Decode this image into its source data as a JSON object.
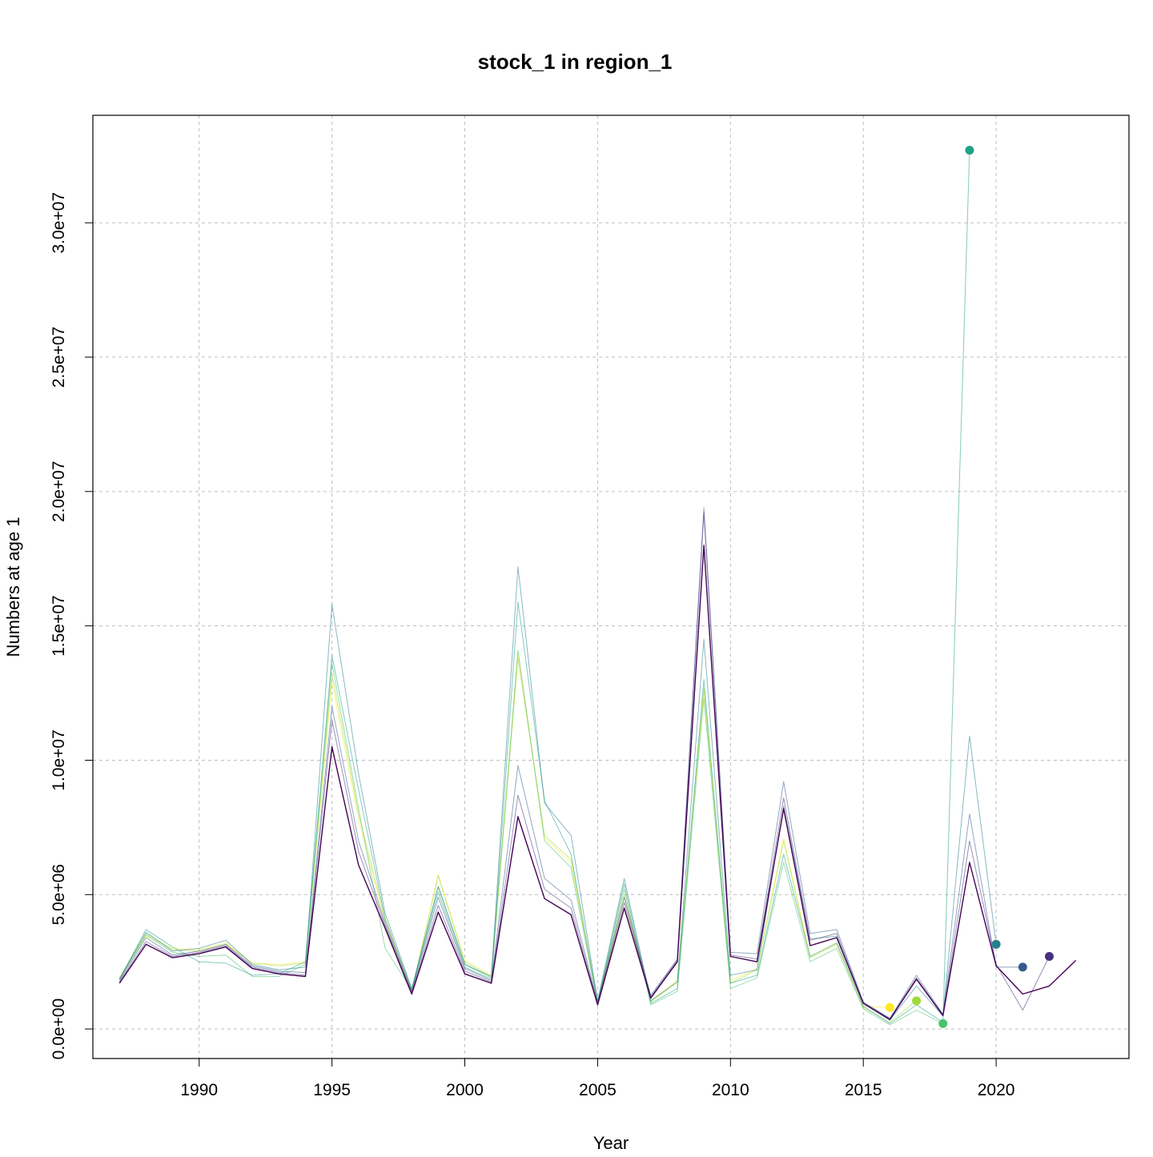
{
  "chart_data": {
    "type": "line",
    "title": "stock_1 in region_1",
    "xlabel": "Year",
    "ylabel": "Numbers at age 1",
    "xlim": [
      1986,
      2025
    ],
    "ylim": [
      -1100000,
      34000000
    ],
    "x_ticks": [
      1990,
      1995,
      2000,
      2005,
      2010,
      2015,
      2020
    ],
    "x_tick_labels": [
      "1990",
      "1995",
      "2000",
      "2005",
      "2010",
      "2015",
      "2020"
    ],
    "y_ticks": [
      0,
      5000000,
      10000000,
      15000000,
      20000000,
      25000000,
      30000000
    ],
    "y_tick_labels": [
      "0.0e+00",
      "5.0e+06",
      "1.0e+07",
      "1.5e+07",
      "2.0e+07",
      "2.5e+07",
      "3.0e+07"
    ],
    "grid": true,
    "series": [
      {
        "color": "#440154",
        "x": [
          1987,
          1988,
          1989,
          1990,
          1991,
          1992,
          1993,
          1994,
          1995,
          1996,
          1997,
          1998,
          1999,
          2000,
          2001,
          2002,
          2003,
          2004,
          2005,
          2006,
          2007,
          2008,
          2009,
          2010,
          2011,
          2012,
          2013,
          2014,
          2015,
          2016,
          2017,
          2018,
          2019,
          2020,
          2021,
          2022,
          2023
        ],
        "values": [
          1700000,
          3150000,
          2650000,
          2800000,
          3050000,
          2250000,
          2050000,
          1950000,
          10500000,
          6100000,
          3750000,
          1300000,
          4350000,
          2050000,
          1700000,
          7900000,
          4850000,
          4250000,
          900000,
          4500000,
          1150000,
          2500000,
          18000000,
          2700000,
          2500000,
          8200000,
          3100000,
          3400000,
          950000,
          350000,
          1850000,
          500000,
          6200000,
          2350000,
          1300000,
          1600000,
          2550000
        ]
      },
      {
        "color": "#46327e",
        "x": [
          1987,
          1988,
          1989,
          1990,
          1991,
          1992,
          1993,
          1994,
          1995,
          1996,
          1997,
          1998,
          1999,
          2000,
          2001,
          2002,
          2003,
          2004,
          2005,
          2006,
          2007,
          2008,
          2009,
          2010,
          2011,
          2012,
          2013,
          2014,
          2015,
          2016,
          2017,
          2018,
          2019,
          2020,
          2021,
          2022
        ],
        "values": [
          1750000,
          3250000,
          2700000,
          2850000,
          3100000,
          2300000,
          2100000,
          2000000,
          11500000,
          6600000,
          3850000,
          1350000,
          4600000,
          2150000,
          1750000,
          8700000,
          5200000,
          4500000,
          950000,
          4700000,
          1200000,
          2550000,
          19200000,
          2750000,
          2600000,
          8600000,
          3300000,
          3550000,
          980000,
          380000,
          1900000,
          520000,
          7000000,
          2400000,
          700000,
          2700000
        ],
        "final_value": 2700000
      },
      {
        "color": "#365c8d",
        "x": [
          1987,
          1988,
          1989,
          1990,
          1991,
          1992,
          1993,
          1994,
          1995,
          1996,
          1997,
          1998,
          1999,
          2000,
          2001,
          2002,
          2003,
          2004,
          2005,
          2006,
          2007,
          2008,
          2009,
          2010,
          2011,
          2012,
          2013,
          2014,
          2015,
          2016,
          2017,
          2018,
          2019,
          2020,
          2021
        ],
        "values": [
          1800000,
          3400000,
          2750000,
          2900000,
          3150000,
          2350000,
          2150000,
          2100000,
          12000000,
          7000000,
          3950000,
          1400000,
          4900000,
          2250000,
          1800000,
          9800000,
          5600000,
          4800000,
          1000000,
          4900000,
          1250000,
          2600000,
          19400000,
          2850000,
          2800000,
          9200000,
          3550000,
          3700000,
          1000000,
          400000,
          2000000,
          550000,
          8000000,
          2300000,
          2300000
        ],
        "final_value": 2300000
      },
      {
        "color": "#277f8e",
        "x": [
          1987,
          1988,
          1989,
          1990,
          1991,
          1992,
          1993,
          1994,
          1995,
          1996,
          1997,
          1998,
          1999,
          2000,
          2001,
          2002,
          2003,
          2004,
          2005,
          2006,
          2007,
          2008,
          2009,
          2010,
          2011,
          2012,
          2013,
          2014,
          2015,
          2016,
          2017,
          2018,
          2019,
          2020
        ],
        "values": [
          1850000,
          3600000,
          2900000,
          3000000,
          3300000,
          2400000,
          2200000,
          2300000,
          15800000,
          9500000,
          4300000,
          1500000,
          5300000,
          2400000,
          1950000,
          17200000,
          8400000,
          7200000,
          1050000,
          5600000,
          1050000,
          1750000,
          14500000,
          2000000,
          2200000,
          8300000,
          3350000,
          3450000,
          950000,
          320000,
          1600000,
          480000,
          10900000,
          3150000
        ],
        "final_value": 3150000
      },
      {
        "color": "#1fa187",
        "x": [
          1987,
          1988,
          1989,
          1990,
          1991,
          1992,
          1993,
          1994,
          1995,
          1996,
          1997,
          1998,
          1999,
          2000,
          2001,
          2002,
          2003,
          2004,
          2005,
          2006,
          2007,
          2008,
          2009,
          2010,
          2011,
          2012,
          2013,
          2014,
          2015,
          2016,
          2017,
          2018,
          2019
        ],
        "values": [
          1850000,
          3700000,
          3050000,
          2500000,
          2450000,
          2000000,
          2050000,
          2500000,
          13900000,
          8900000,
          4100000,
          1450000,
          5100000,
          2300000,
          1850000,
          15900000,
          8500000,
          6500000,
          1000000,
          5400000,
          950000,
          1500000,
          13000000,
          1700000,
          2000000,
          6500000,
          2700000,
          3200000,
          850000,
          200000,
          900000,
          250000,
          32700000
        ],
        "final_value": 32700000
      },
      {
        "color": "#4ac16d",
        "x": [
          1987,
          1988,
          1989,
          1990,
          1991,
          1992,
          1993,
          1994,
          1995,
          1996,
          1997,
          1998,
          1999,
          2000,
          2001,
          2002,
          2003,
          2004,
          2005,
          2006,
          2007,
          2008,
          2009,
          2010,
          2011,
          2012,
          2013,
          2014,
          2015,
          2016,
          2017,
          2018
        ],
        "values": [
          1850000,
          3500000,
          2850000,
          2700000,
          2750000,
          1950000,
          1950000,
          2400000,
          13600000,
          8200000,
          3000000,
          1450000,
          5300000,
          2400000,
          1900000,
          14100000,
          7000000,
          6000000,
          950000,
          5200000,
          900000,
          1400000,
          12300000,
          1500000,
          1900000,
          6200000,
          2500000,
          3000000,
          750000,
          150000,
          700000,
          200000
        ],
        "final_value": 200000
      },
      {
        "color": "#a0da39",
        "x": [
          1987,
          1988,
          1989,
          1990,
          1991,
          1992,
          1993,
          1994,
          1995,
          1996,
          1997,
          1998,
          1999,
          2000,
          2001,
          2002,
          2003,
          2004,
          2005,
          2006,
          2007,
          2008,
          2009,
          2010,
          2011,
          2012,
          2013,
          2014,
          2015,
          2016,
          2017
        ],
        "values": [
          1900000,
          3550000,
          2950000,
          2900000,
          3150000,
          2450000,
          2350000,
          2450000,
          13200000,
          8000000,
          4100000,
          1400000,
          5700000,
          2500000,
          1950000,
          13800000,
          7200000,
          6300000,
          950000,
          5000000,
          1000000,
          1750000,
          12700000,
          1700000,
          2200000,
          7000000,
          2650000,
          3150000,
          800000,
          250000,
          1050000
        ],
        "final_value": 1050000
      },
      {
        "color": "#fde725",
        "x": [
          1987,
          1988,
          1989,
          1990,
          1991,
          1992,
          1993,
          1994,
          1995,
          1996,
          1997,
          1998,
          1999,
          2000,
          2001,
          2002,
          2003,
          2004,
          2005,
          2006,
          2007,
          2008,
          2009,
          2010,
          2011,
          2012,
          2013,
          2014,
          2015,
          2016
        ],
        "values": [
          1900000,
          3450000,
          3000000,
          2950000,
          3200000,
          2450000,
          2400000,
          2500000,
          12900000,
          7800000,
          4000000,
          1400000,
          5750000,
          2550000,
          2000000,
          14000000,
          7100000,
          6200000,
          950000,
          4900000,
          1050000,
          1800000,
          12600000,
          1800000,
          2250000,
          7100000,
          2700000,
          3200000,
          850000,
          800000
        ],
        "final_value": 800000
      }
    ]
  }
}
